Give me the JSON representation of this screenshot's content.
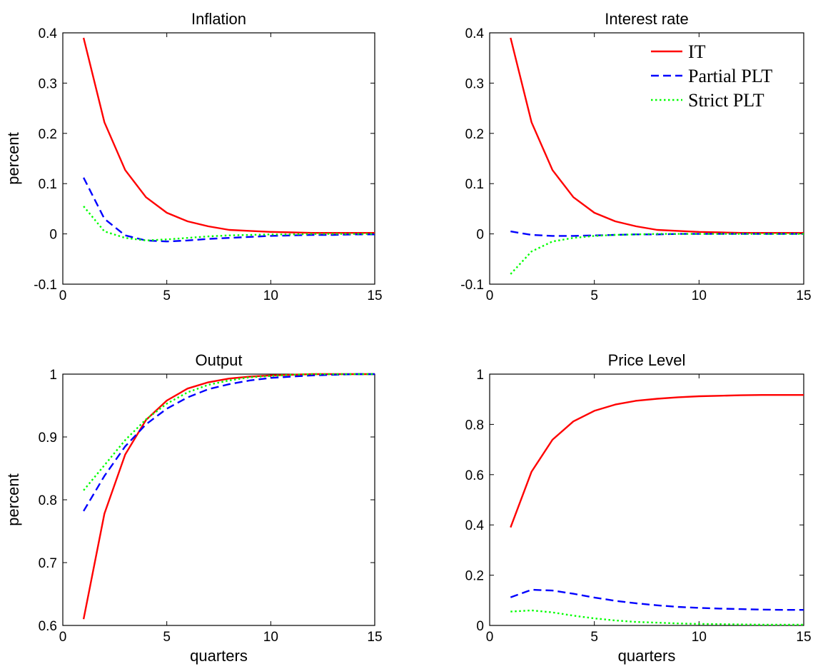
{
  "colors": {
    "IT": "#ff0000",
    "Partial PLT": "#0000ff",
    "Strict PLT": "#00ff00"
  },
  "legend": {
    "location": "top-right",
    "entries": [
      {
        "label": "IT",
        "style": "solid",
        "color": "#ff0000"
      },
      {
        "label": "Partial PLT",
        "style": "dashed",
        "color": "#0000ff"
      },
      {
        "label": "Strict PLT",
        "style": "dotted",
        "color": "#00ff00"
      }
    ]
  },
  "chart_data": [
    {
      "type": "line",
      "title": "Inflation",
      "xlabel": "",
      "ylabel": "percent",
      "xlim": [
        0,
        15
      ],
      "ylim": [
        -0.1,
        0.4
      ],
      "xticks": [
        0,
        5,
        10,
        15
      ],
      "xtick_labels": [
        "0",
        "5",
        "10",
        "15"
      ],
      "yticks": [
        -0.1,
        0,
        0.1,
        0.2,
        0.3,
        0.4
      ],
      "ytick_labels": [
        "-0.1",
        "0",
        "0.1",
        "0.2",
        "0.3",
        "0.4"
      ],
      "grid": false,
      "x": [
        1,
        2,
        3,
        4,
        5,
        6,
        7,
        8,
        9,
        10,
        11,
        12,
        13,
        14,
        15
      ],
      "series": [
        {
          "name": "IT",
          "style": "solid",
          "values": [
            0.39,
            0.222,
            0.127,
            0.073,
            0.042,
            0.025,
            0.015,
            0.008,
            0.006,
            0.004,
            0.003,
            0.002,
            0.002,
            0.002,
            0.002
          ]
        },
        {
          "name": "Partial PLT",
          "style": "dashed",
          "values": [
            0.112,
            0.03,
            -0.003,
            -0.013,
            -0.015,
            -0.013,
            -0.01,
            -0.008,
            -0.006,
            -0.004,
            -0.003,
            -0.002,
            -0.002,
            -0.001,
            -0.001
          ]
        },
        {
          "name": "Strict PLT",
          "style": "dotted",
          "values": [
            0.055,
            0.005,
            -0.008,
            -0.013,
            -0.011,
            -0.008,
            -0.005,
            -0.003,
            -0.002,
            -0.001,
            -0.001,
            0,
            0,
            0,
            0
          ]
        }
      ]
    },
    {
      "type": "line",
      "title": "Interest rate",
      "xlabel": "",
      "ylabel": "",
      "xlim": [
        0,
        15
      ],
      "ylim": [
        -0.1,
        0.4
      ],
      "xticks": [
        0,
        5,
        10,
        15
      ],
      "xtick_labels": [
        "0",
        "5",
        "10",
        "15"
      ],
      "yticks": [
        -0.1,
        0,
        0.1,
        0.2,
        0.3,
        0.4
      ],
      "ytick_labels": [
        "-0.1",
        "0",
        "0.1",
        "0.2",
        "0.3",
        "0.4"
      ],
      "grid": false,
      "legend": true,
      "x": [
        1,
        2,
        3,
        4,
        5,
        6,
        7,
        8,
        9,
        10,
        11,
        12,
        13,
        14,
        15
      ],
      "series": [
        {
          "name": "IT",
          "style": "solid",
          "values": [
            0.39,
            0.222,
            0.127,
            0.073,
            0.042,
            0.025,
            0.015,
            0.008,
            0.006,
            0.004,
            0.003,
            0.002,
            0.002,
            0.002,
            0.002
          ]
        },
        {
          "name": "Partial PLT",
          "style": "dashed",
          "values": [
            0.005,
            -0.002,
            -0.004,
            -0.004,
            -0.003,
            -0.002,
            -0.001,
            -0.001,
            0,
            0,
            0,
            0,
            0,
            0,
            0
          ]
        },
        {
          "name": "Strict PLT",
          "style": "dotted",
          "values": [
            -0.08,
            -0.035,
            -0.015,
            -0.008,
            -0.004,
            -0.002,
            -0.001,
            0,
            0,
            0,
            0,
            0,
            0,
            0,
            0
          ]
        }
      ]
    },
    {
      "type": "line",
      "title": "Output",
      "xlabel": "quarters",
      "ylabel": "percent",
      "xlim": [
        0,
        15
      ],
      "ylim": [
        0.6,
        1
      ],
      "xticks": [
        0,
        5,
        10,
        15
      ],
      "xtick_labels": [
        "0",
        "5",
        "10",
        "15"
      ],
      "yticks": [
        0.6,
        0.7,
        0.8,
        0.9,
        1
      ],
      "ytick_labels": [
        "0.6",
        "0.7",
        "0.8",
        "0.9",
        "1"
      ],
      "grid": false,
      "x": [
        1,
        2,
        3,
        4,
        5,
        6,
        7,
        8,
        9,
        10,
        11,
        12,
        13,
        14,
        15
      ],
      "series": [
        {
          "name": "IT",
          "style": "solid",
          "values": [
            0.61,
            0.778,
            0.872,
            0.927,
            0.958,
            0.977,
            0.987,
            0.993,
            0.996,
            0.998,
            0.999,
            1,
            1,
            1,
            1
          ]
        },
        {
          "name": "Partial PLT",
          "style": "dashed",
          "values": [
            0.782,
            0.838,
            0.885,
            0.92,
            0.945,
            0.963,
            0.976,
            0.984,
            0.99,
            0.994,
            0.996,
            0.998,
            0.999,
            1,
            1
          ]
        },
        {
          "name": "Strict PLT",
          "style": "dotted",
          "values": [
            0.815,
            0.855,
            0.895,
            0.928,
            0.953,
            0.971,
            0.983,
            0.99,
            0.995,
            0.997,
            0.999,
            1,
            1,
            1,
            1
          ]
        }
      ]
    },
    {
      "type": "line",
      "title": "Price Level",
      "xlabel": "quarters",
      "ylabel": "",
      "xlim": [
        0,
        15
      ],
      "ylim": [
        0,
        1
      ],
      "xticks": [
        0,
        5,
        10,
        15
      ],
      "xtick_labels": [
        "0",
        "5",
        "10",
        "15"
      ],
      "yticks": [
        0,
        0.2,
        0.4,
        0.6,
        0.8,
        1
      ],
      "ytick_labels": [
        "0",
        "0.2",
        "0.4",
        "0.6",
        "0.8",
        "1"
      ],
      "grid": false,
      "x": [
        1,
        2,
        3,
        4,
        5,
        6,
        7,
        8,
        9,
        10,
        11,
        12,
        13,
        14,
        15
      ],
      "series": [
        {
          "name": "IT",
          "style": "solid",
          "values": [
            0.39,
            0.612,
            0.739,
            0.812,
            0.854,
            0.879,
            0.894,
            0.902,
            0.908,
            0.912,
            0.914,
            0.916,
            0.917,
            0.917,
            0.917
          ]
        },
        {
          "name": "Partial PLT",
          "style": "dashed",
          "values": [
            0.112,
            0.142,
            0.139,
            0.126,
            0.111,
            0.098,
            0.088,
            0.08,
            0.074,
            0.07,
            0.067,
            0.065,
            0.063,
            0.062,
            0.062
          ]
        },
        {
          "name": "Strict PLT",
          "style": "dotted",
          "values": [
            0.055,
            0.06,
            0.052,
            0.039,
            0.028,
            0.02,
            0.014,
            0.011,
            0.008,
            0.006,
            0.005,
            0.004,
            0.003,
            0.003,
            0.003
          ]
        }
      ]
    }
  ]
}
